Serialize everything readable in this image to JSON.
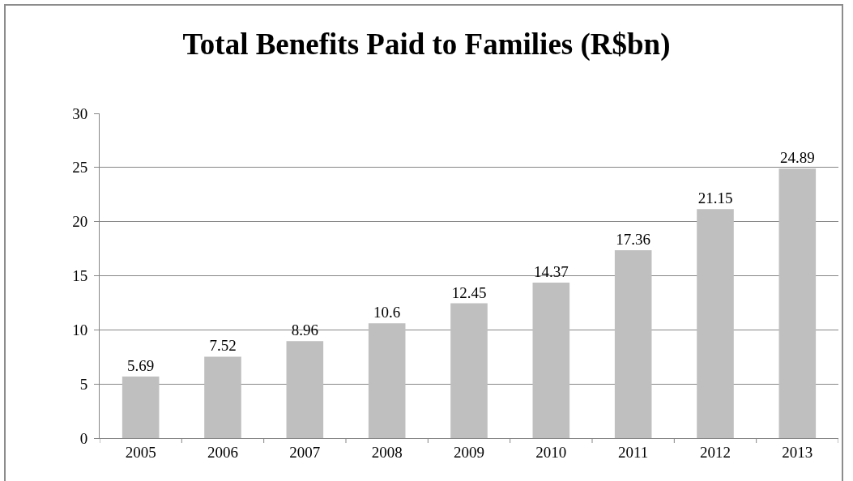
{
  "chart_data": {
    "type": "bar",
    "title": "Total Benefits Paid to Families (R$bn)",
    "categories": [
      "2005",
      "2006",
      "2007",
      "2008",
      "2009",
      "2010",
      "2011",
      "2012",
      "2013"
    ],
    "values": [
      5.69,
      7.52,
      8.96,
      10.6,
      12.45,
      14.37,
      17.36,
      21.15,
      24.89
    ],
    "color": "#bfbfbf",
    "ylim": [
      0,
      30
    ],
    "yticks": [
      0,
      5,
      10,
      15,
      20,
      25,
      30
    ],
    "grid": "y",
    "data_labels": true
  }
}
